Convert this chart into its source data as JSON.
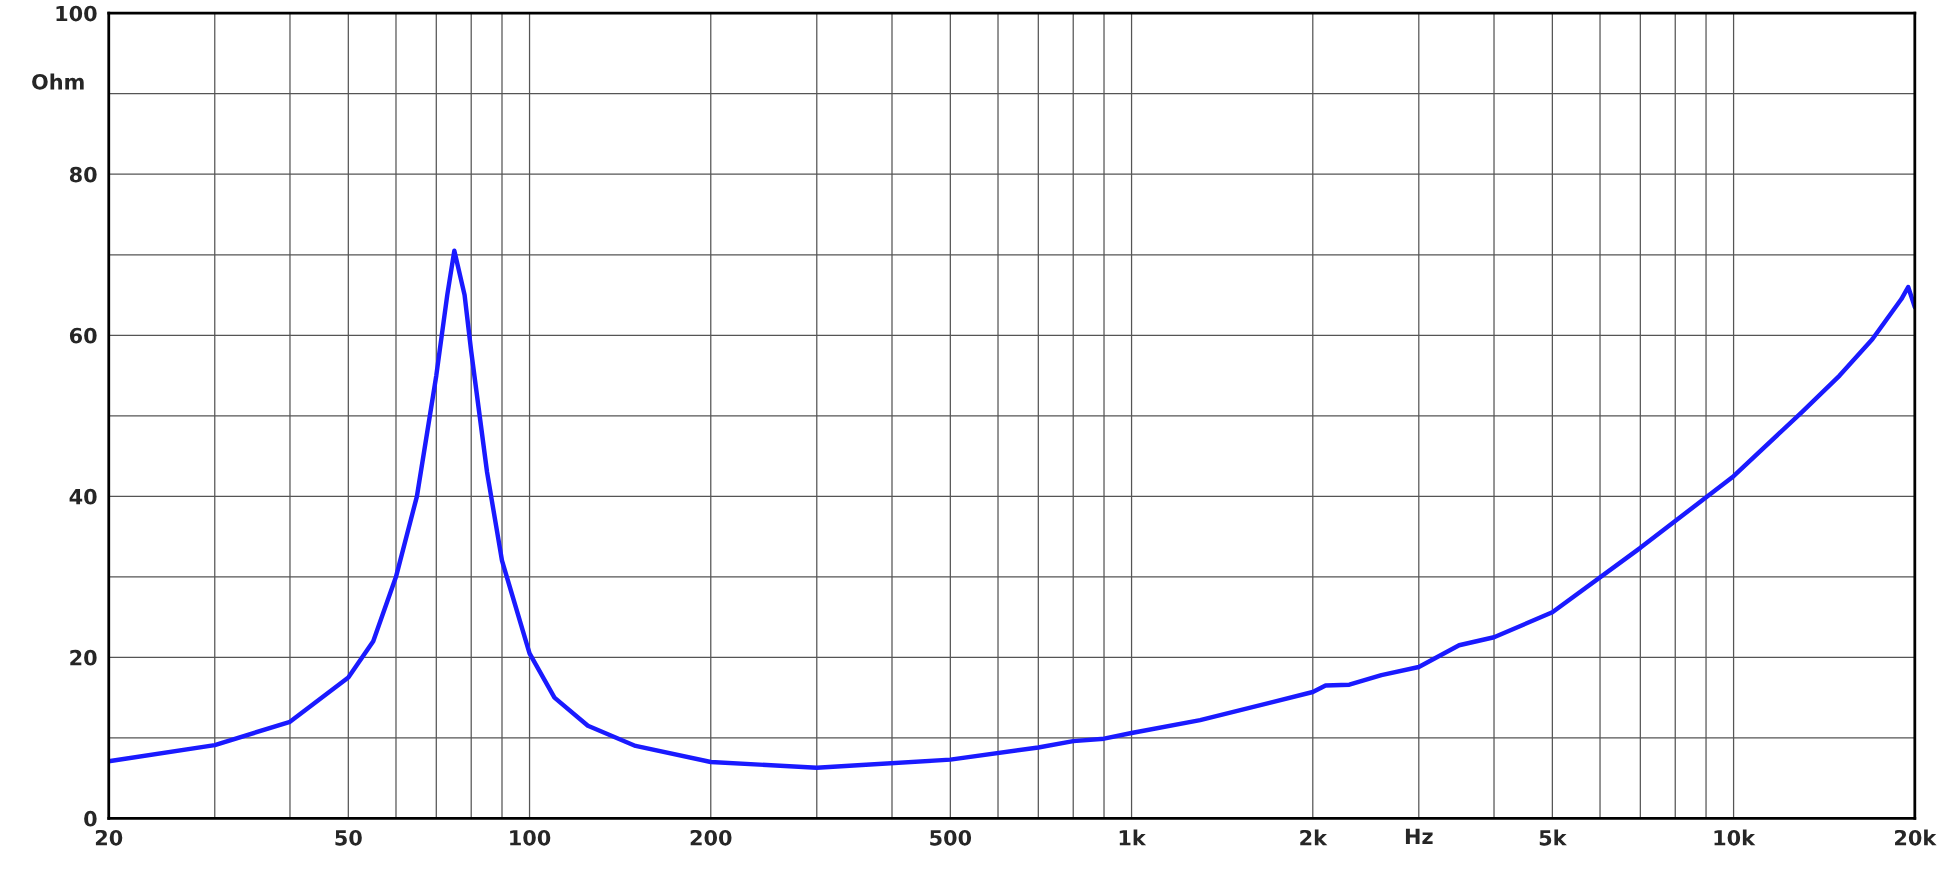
{
  "chart_data": {
    "type": "line",
    "xlabel": "Hz",
    "ylabel": "Ohm",
    "log": "x",
    "grid": true,
    "marker": "none",
    "line_style": "solid",
    "xlim": [
      20,
      20000
    ],
    "ylim": [
      0,
      100
    ],
    "xticks": [
      20,
      {
        "value": 30,
        "label": null
      },
      {
        "value": 40,
        "label": null
      },
      50,
      {
        "value": 60,
        "label": null
      },
      {
        "value": 70,
        "label": null
      },
      {
        "value": 80,
        "label": null
      },
      {
        "value": 90,
        "label": null
      },
      100,
      200,
      {
        "value": 300,
        "label": null
      },
      {
        "value": 400,
        "label": null
      },
      500,
      {
        "value": 600,
        "label": null
      },
      {
        "value": 700,
        "label": null
      },
      {
        "value": 800,
        "label": null
      },
      {
        "value": 900,
        "label": null
      },
      {
        "value": 1000,
        "label": "1k"
      },
      {
        "value": 2000,
        "label": "2k"
      },
      {
        "value": 3000,
        "label": null
      },
      {
        "value": 4000,
        "label": null
      },
      {
        "value": 5000,
        "label": "5k"
      },
      {
        "value": 6000,
        "label": null
      },
      {
        "value": 7000,
        "label": null
      },
      {
        "value": 8000,
        "label": null
      },
      {
        "value": 9000,
        "label": null
      },
      {
        "value": 10000,
        "label": "10k"
      },
      {
        "value": 20000,
        "label": "20k"
      }
    ],
    "yticks": [
      0,
      {
        "value": 10,
        "label": null
      },
      20,
      {
        "value": 30,
        "label": null
      },
      40,
      {
        "value": 50,
        "label": null
      },
      60,
      {
        "value": 70,
        "label": null
      },
      80,
      {
        "value": 90,
        "label": null
      },
      100
    ],
    "series": [
      {
        "color": "#1a1aff",
        "x": [
          20,
          30,
          40,
          50,
          55,
          60,
          65,
          70,
          73,
          75,
          78,
          80,
          85,
          90,
          100,
          110,
          125,
          150,
          200,
          300,
          500,
          700,
          800,
          900,
          1000,
          1300,
          2000,
          2100,
          2300,
          2600,
          3000,
          3500,
          4000,
          5000,
          7000,
          10000,
          13000,
          15000,
          17000,
          19000,
          19500,
          20000
        ],
        "values": [
          7.1,
          9.1,
          12,
          17.5,
          22,
          30,
          40,
          55,
          65,
          70.5,
          65,
          58,
          43,
          32,
          20.5,
          15,
          11.5,
          9,
          7,
          6.3,
          7.3,
          8.8,
          9.6,
          9.9,
          10.6,
          12.2,
          15.7,
          16.5,
          16.6,
          17.8,
          18.8,
          21.5,
          22.5,
          25.6,
          33.6,
          42.5,
          50.5,
          55,
          59.5,
          64.5,
          66,
          63.5
        ]
      }
    ]
  }
}
